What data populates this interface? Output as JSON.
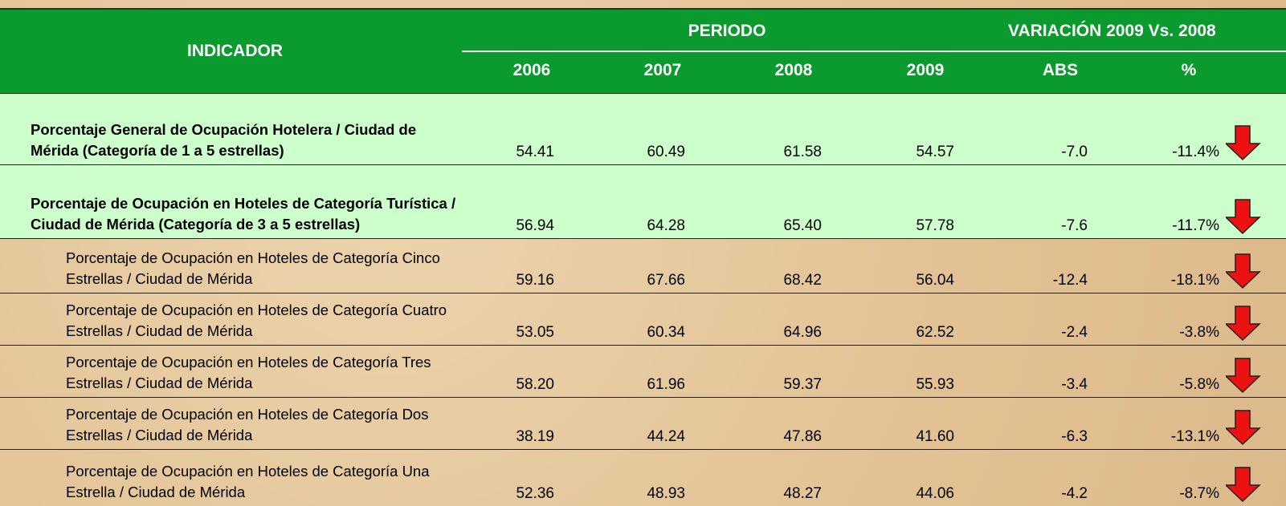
{
  "header": {
    "indicador": "INDICADOR",
    "periodo": "PERIODO",
    "variacion": "VARIACIÓN 2009 Vs. 2008",
    "columns": [
      "2006",
      "2007",
      "2008",
      "2009",
      "ABS",
      "%"
    ]
  },
  "table": {
    "rows": [
      {
        "label": "Porcentaje General de Ocupación Hotelera / Ciudad de Mérida (Categoría de 1 a 5 estrellas)",
        "values": [
          "54.41",
          "60.49",
          "61.58",
          "54.57",
          "-7.0",
          "-11.4%"
        ]
      },
      {
        "label": "Porcentaje de Ocupación en Hoteles de Categoría Turística / Ciudad de Mérida (Categoría de 3 a 5 estrellas)",
        "values": [
          "56.94",
          "64.28",
          "65.40",
          "57.78",
          "-7.6",
          "-11.7%"
        ]
      },
      {
        "label": "Porcentaje de Ocupación en Hoteles de Categoría Cinco Estrellas / Ciudad de Mérida",
        "values": [
          "59.16",
          "67.66",
          "68.42",
          "56.04",
          "-12.4",
          "-18.1%"
        ]
      },
      {
        "label": "Porcentaje de Ocupación en Hoteles de Categoría Cuatro Estrellas / Ciudad de Mérida",
        "values": [
          "53.05",
          "60.34",
          "64.96",
          "62.52",
          "-2.4",
          "-3.8%"
        ]
      },
      {
        "label": "Porcentaje de Ocupación en Hoteles de Categoría Tres Estrellas / Ciudad de Mérida",
        "values": [
          "58.20",
          "61.96",
          "59.37",
          "55.93",
          "-3.4",
          "-5.8%"
        ]
      },
      {
        "label": "Porcentaje de Ocupación en Hoteles de Categoría Dos Estrellas / Ciudad de Mérida",
        "values": [
          "38.19",
          "44.24",
          "47.86",
          "41.60",
          "-6.3",
          "-13.1%"
        ]
      },
      {
        "label": "Porcentaje de Ocupación en Hoteles de Categoría Una Estrella / Ciudad de Mérida",
        "values": [
          "52.36",
          "48.93",
          "48.27",
          "44.06",
          "-4.2",
          "-8.7%"
        ]
      }
    ]
  }
}
